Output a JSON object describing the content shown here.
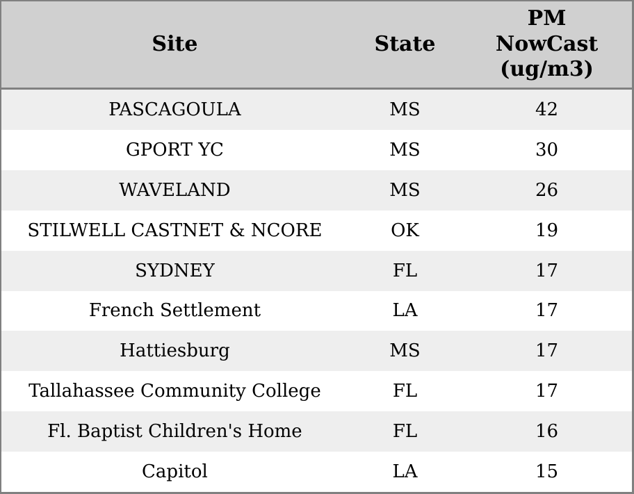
{
  "chart_data": {
    "type": "table",
    "title": "",
    "columns": [
      "Site",
      "State",
      "PM NowCast (ug/m3)"
    ],
    "rows": [
      {
        "site": "PASCAGOULA",
        "state": "MS",
        "pm_nowcast": "42"
      },
      {
        "site": "GPORT YC",
        "state": "MS",
        "pm_nowcast": "30"
      },
      {
        "site": "WAVELAND",
        "state": "MS",
        "pm_nowcast": "26"
      },
      {
        "site": "STILWELL CASTNET & NCORE",
        "state": "OK",
        "pm_nowcast": "19"
      },
      {
        "site": "SYDNEY",
        "state": "FL",
        "pm_nowcast": "17"
      },
      {
        "site": "French Settlement",
        "state": "LA",
        "pm_nowcast": "17"
      },
      {
        "site": "Hattiesburg",
        "state": "MS",
        "pm_nowcast": "17"
      },
      {
        "site": "Tallahassee Community College",
        "state": "FL",
        "pm_nowcast": "17"
      },
      {
        "site": "Fl. Baptist Children's Home",
        "state": "FL",
        "pm_nowcast": "16"
      },
      {
        "site": "Capitol",
        "state": "LA",
        "pm_nowcast": "15"
      }
    ],
    "layout": {
      "grid": "off",
      "row_striping": "odd rows shaded",
      "header_wraps": true
    }
  },
  "colors": {
    "header_bg": "#d0d0d0",
    "row_alt_bg": "#eeeeee",
    "row_bg": "#ffffff",
    "border": "#808080",
    "text": "#000000"
  }
}
